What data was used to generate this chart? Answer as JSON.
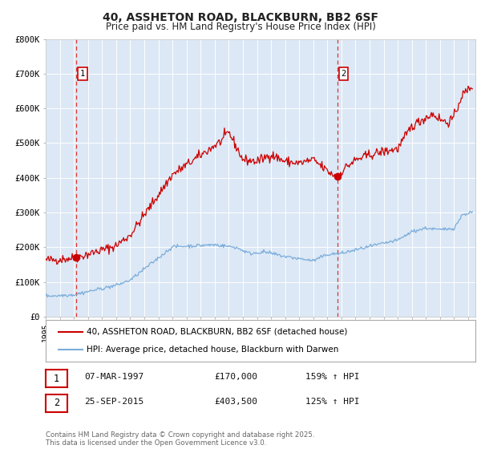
{
  "title_line1": "40, ASSHETON ROAD, BLACKBURN, BB2 6SF",
  "title_line2": "Price paid vs. HM Land Registry's House Price Index (HPI)",
  "ylim": [
    0,
    800000
  ],
  "xlim_start": 1995.0,
  "xlim_end": 2025.5,
  "bg_color": "#dce8f5",
  "red_line_color": "#cc0000",
  "blue_line_color": "#7aaddc",
  "grid_color": "#ffffff",
  "dashed_line_color": "#dd3333",
  "sale1_x": 1997.18,
  "sale1_y": 170000,
  "sale2_x": 2015.73,
  "sale2_y": 403500,
  "marker_color": "#cc0000",
  "legend_label_red": "40, ASSHETON ROAD, BLACKBURN, BB2 6SF (detached house)",
  "legend_label_blue": "HPI: Average price, detached house, Blackburn with Darwen",
  "table_row1": [
    "1",
    "07-MAR-1997",
    "£170,000",
    "159% ↑ HPI"
  ],
  "table_row2": [
    "2",
    "25-SEP-2015",
    "£403,500",
    "125% ↑ HPI"
  ],
  "footnote": "Contains HM Land Registry data © Crown copyright and database right 2025.\nThis data is licensed under the Open Government Licence v3.0.",
  "ytick_labels": [
    "£0",
    "£100K",
    "£200K",
    "£300K",
    "£400K",
    "£500K",
    "£600K",
    "£700K",
    "£800K"
  ],
  "ytick_values": [
    0,
    100000,
    200000,
    300000,
    400000,
    500000,
    600000,
    700000,
    800000
  ],
  "xtick_years": [
    1995,
    1996,
    1997,
    1998,
    1999,
    2000,
    2001,
    2002,
    2003,
    2004,
    2005,
    2006,
    2007,
    2008,
    2009,
    2010,
    2011,
    2012,
    2013,
    2014,
    2015,
    2016,
    2017,
    2018,
    2019,
    2020,
    2021,
    2022,
    2023,
    2024,
    2025
  ]
}
